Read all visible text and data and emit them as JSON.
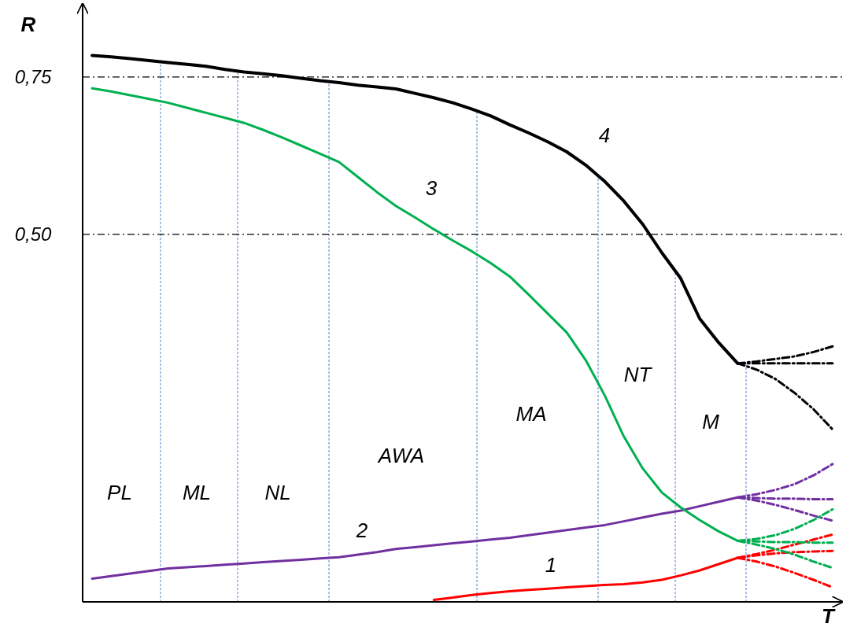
{
  "chart_data": {
    "type": "line",
    "xlabel": "T",
    "ylabel": "R",
    "ylim": [
      -0.084,
      0.866
    ],
    "yticks": [
      {
        "value": 0.75,
        "label": "0,75"
      },
      {
        "value": 0.5,
        "label": "0,50"
      }
    ],
    "tick_labels": "y",
    "categories": [
      null,
      null,
      null,
      null,
      null,
      null,
      null,
      null,
      null,
      null,
      null,
      null,
      null,
      null,
      null,
      null,
      null,
      null,
      null,
      null,
      null,
      null,
      null,
      null,
      null,
      null,
      null,
      null,
      null,
      null,
      null,
      null,
      null,
      null,
      null,
      null,
      null,
      null,
      null,
      null
    ],
    "series": [
      {
        "name": "1",
        "color": "#ff0000",
        "values": [
          null,
          null,
          null,
          null,
          null,
          null,
          null,
          null,
          null,
          null,
          null,
          null,
          null,
          null,
          null,
          null,
          null,
          null,
          -0.081,
          -0.077,
          -0.073,
          -0.07,
          -0.067,
          -0.065,
          -0.063,
          -0.061,
          -0.059,
          -0.057,
          -0.056,
          -0.053,
          -0.049,
          -0.042,
          -0.034,
          -0.024,
          -0.014,
          null,
          null,
          null,
          null,
          null
        ]
      },
      {
        "name": "2",
        "color": "#7030a0",
        "values": [
          -0.047,
          -0.043,
          -0.039,
          -0.035,
          -0.031,
          -0.029,
          -0.027,
          -0.025,
          -0.023,
          -0.021,
          -0.019,
          -0.017,
          -0.015,
          -0.013,
          -0.009,
          -0.005,
          0,
          0.003,
          0.006,
          0.009,
          0.012,
          0.015,
          0.018,
          0.022,
          0.026,
          0.03,
          0.034,
          0.038,
          0.044,
          0.05,
          0.056,
          0.061,
          0.068,
          0.075,
          0.082,
          null,
          null,
          null,
          null,
          null
        ]
      },
      {
        "name": "3",
        "color": "#00b050",
        "values": [
          0.732,
          0.727,
          0.721,
          0.715,
          0.709,
          0.701,
          0.693,
          0.685,
          0.677,
          0.666,
          0.654,
          0.641,
          0.628,
          0.615,
          0.591,
          0.567,
          0.545,
          0.527,
          0.508,
          0.49,
          0.473,
          0.454,
          0.433,
          0.404,
          0.374,
          0.344,
          0.3,
          0.244,
          0.179,
          0.128,
          0.09,
          0.066,
          0.046,
          0.028,
          0.013,
          null,
          null,
          null,
          null,
          null
        ]
      },
      {
        "name": "4",
        "color": "#000000",
        "values": [
          0.784,
          0.782,
          0.779,
          0.776,
          0.773,
          0.77,
          0.767,
          0.762,
          0.758,
          0.755,
          0.752,
          0.748,
          0.744,
          0.741,
          0.737,
          0.734,
          0.731,
          0.724,
          0.717,
          0.709,
          0.699,
          0.688,
          0.674,
          0.661,
          0.647,
          0.631,
          0.61,
          0.584,
          0.553,
          0.516,
          0.471,
          0.43,
          0.366,
          0.328,
          0.295,
          null,
          null,
          null,
          null,
          null
        ]
      },
      {
        "color": "#ff0000",
        "line_style": "dashed",
        "values": [
          null,
          null,
          null,
          null,
          null,
          null,
          null,
          null,
          null,
          null,
          null,
          null,
          null,
          null,
          null,
          null,
          null,
          null,
          null,
          null,
          null,
          null,
          null,
          null,
          null,
          null,
          null,
          null,
          null,
          null,
          null,
          null,
          null,
          null,
          -0.014,
          -0.008,
          -0.001,
          0.007,
          0.015,
          0.023
        ]
      },
      {
        "color": "#ff0000",
        "line_style": "dashed",
        "values": [
          null,
          null,
          null,
          null,
          null,
          null,
          null,
          null,
          null,
          null,
          null,
          null,
          null,
          null,
          null,
          null,
          null,
          null,
          null,
          null,
          null,
          null,
          null,
          null,
          null,
          null,
          null,
          null,
          null,
          null,
          null,
          null,
          null,
          null,
          -0.014,
          -0.01,
          -0.007,
          -0.005,
          -0.004,
          -0.003
        ]
      },
      {
        "color": "#ff0000",
        "line_style": "dashed",
        "values": [
          null,
          null,
          null,
          null,
          null,
          null,
          null,
          null,
          null,
          null,
          null,
          null,
          null,
          null,
          null,
          null,
          null,
          null,
          null,
          null,
          null,
          null,
          null,
          null,
          null,
          null,
          null,
          null,
          null,
          null,
          null,
          null,
          null,
          null,
          -0.014,
          -0.02,
          -0.028,
          -0.038,
          -0.049,
          -0.061
        ]
      },
      {
        "color": "#7030a0",
        "line_style": "dashed",
        "values": [
          null,
          null,
          null,
          null,
          null,
          null,
          null,
          null,
          null,
          null,
          null,
          null,
          null,
          null,
          null,
          null,
          null,
          null,
          null,
          null,
          null,
          null,
          null,
          null,
          null,
          null,
          null,
          null,
          null,
          null,
          null,
          null,
          null,
          null,
          0.082,
          0.087,
          0.094,
          0.103,
          0.117,
          0.135
        ]
      },
      {
        "color": "#7030a0",
        "line_style": "dashed",
        "values": [
          null,
          null,
          null,
          null,
          null,
          null,
          null,
          null,
          null,
          null,
          null,
          null,
          null,
          null,
          null,
          null,
          null,
          null,
          null,
          null,
          null,
          null,
          null,
          null,
          null,
          null,
          null,
          null,
          null,
          null,
          null,
          null,
          null,
          null,
          0.082,
          0.081,
          0.08,
          0.08,
          0.079,
          0.079
        ]
      },
      {
        "color": "#7030a0",
        "line_style": "dashed",
        "values": [
          null,
          null,
          null,
          null,
          null,
          null,
          null,
          null,
          null,
          null,
          null,
          null,
          null,
          null,
          null,
          null,
          null,
          null,
          null,
          null,
          null,
          null,
          null,
          null,
          null,
          null,
          null,
          null,
          null,
          null,
          null,
          null,
          null,
          null,
          0.082,
          0.077,
          0.07,
          0.062,
          0.053,
          0.045
        ]
      },
      {
        "color": "#00b050",
        "line_style": "dashed",
        "values": [
          null,
          null,
          null,
          null,
          null,
          null,
          null,
          null,
          null,
          null,
          null,
          null,
          null,
          null,
          null,
          null,
          null,
          null,
          null,
          null,
          null,
          null,
          null,
          null,
          null,
          null,
          null,
          null,
          null,
          null,
          null,
          null,
          null,
          null,
          0.013,
          0.016,
          0.022,
          0.032,
          0.046,
          0.063
        ]
      },
      {
        "color": "#00b050",
        "line_style": "dashed",
        "values": [
          null,
          null,
          null,
          null,
          null,
          null,
          null,
          null,
          null,
          null,
          null,
          null,
          null,
          null,
          null,
          null,
          null,
          null,
          null,
          null,
          null,
          null,
          null,
          null,
          null,
          null,
          null,
          null,
          null,
          null,
          null,
          null,
          null,
          null,
          0.013,
          0.012,
          0.011,
          0.011,
          0.01,
          0.01
        ]
      },
      {
        "color": "#00b050",
        "line_style": "dashed",
        "values": [
          null,
          null,
          null,
          null,
          null,
          null,
          null,
          null,
          null,
          null,
          null,
          null,
          null,
          null,
          null,
          null,
          null,
          null,
          null,
          null,
          null,
          null,
          null,
          null,
          null,
          null,
          null,
          null,
          null,
          null,
          null,
          null,
          null,
          null,
          0.013,
          0.007,
          0,
          -0.009,
          -0.02,
          -0.03
        ]
      },
      {
        "color": "#000000",
        "line_style": "dashed",
        "values": [
          null,
          null,
          null,
          null,
          null,
          null,
          null,
          null,
          null,
          null,
          null,
          null,
          null,
          null,
          null,
          null,
          null,
          null,
          null,
          null,
          null,
          null,
          null,
          null,
          null,
          null,
          null,
          null,
          null,
          null,
          null,
          null,
          null,
          null,
          0.295,
          0.298,
          0.302,
          0.306,
          0.313,
          0.322
        ]
      },
      {
        "color": "#000000",
        "line_style": "dashed",
        "values": [
          null,
          null,
          null,
          null,
          null,
          null,
          null,
          null,
          null,
          null,
          null,
          null,
          null,
          null,
          null,
          null,
          null,
          null,
          null,
          null,
          null,
          null,
          null,
          null,
          null,
          null,
          null,
          null,
          null,
          null,
          null,
          null,
          null,
          null,
          0.295,
          0.295,
          0.295,
          0.295,
          0.295,
          0.295
        ]
      },
      {
        "color": "#000000",
        "line_style": "dashed",
        "values": [
          null,
          null,
          null,
          null,
          null,
          null,
          null,
          null,
          null,
          null,
          null,
          null,
          null,
          null,
          null,
          null,
          null,
          null,
          null,
          null,
          null,
          null,
          null,
          null,
          null,
          null,
          null,
          null,
          null,
          null,
          null,
          null,
          null,
          null,
          0.295,
          0.285,
          0.27,
          0.248,
          0.222,
          0.19
        ]
      }
    ],
    "ref_lines": [
      {
        "axis": "y",
        "value": 0.75,
        "line_style": "dashed",
        "color": "#000000"
      },
      {
        "axis": "y",
        "value": 0.5,
        "line_style": "dashed",
        "color": "#000000"
      }
    ],
    "annotations": [
      "PL",
      "ML",
      "NL",
      "AWA",
      "MA",
      "NT",
      "M"
    ]
  }
}
